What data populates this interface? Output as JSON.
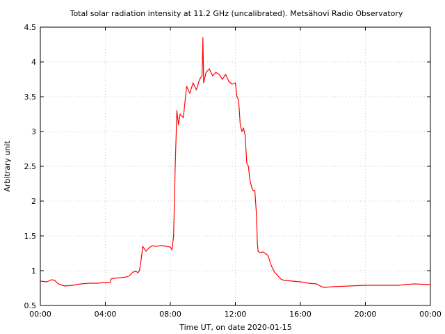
{
  "chart_data": {
    "type": "line",
    "title": "Total solar radiation intensity at 11.2 GHz (uncalibrated). Metsähovi Radio Observatory",
    "xlabel": "Time UT, on date 2020-01-15",
    "ylabel": "Arbitrary unit",
    "xlim": [
      0,
      24
    ],
    "ylim": [
      0.5,
      4.5
    ],
    "xticks": [
      0,
      4,
      8,
      12,
      16,
      20,
      24
    ],
    "xtick_labels": [
      "00:00",
      "04:00",
      "08:00",
      "12:00",
      "16:00",
      "20:00",
      "00:00"
    ],
    "yticks": [
      0.5,
      1,
      1.5,
      2,
      2.5,
      3,
      3.5,
      4,
      4.5
    ],
    "ytick_labels": [
      "0.5",
      "1",
      "1.5",
      "2",
      "2.5",
      "3",
      "3.5",
      "4",
      "4.5"
    ],
    "grid": true,
    "line_color": "#ff0000",
    "series": [
      {
        "x": [
          0.0,
          0.4,
          0.7,
          0.9,
          1.0,
          1.2,
          1.5,
          2.0,
          2.5,
          3.0,
          3.5,
          4.0,
          4.3,
          4.35,
          4.5,
          5.0,
          5.3,
          5.5,
          5.7,
          5.9,
          6.0,
          6.1,
          6.2,
          6.3,
          6.5,
          6.7,
          6.9,
          7.0,
          7.5,
          8.0,
          8.1,
          8.2,
          8.3,
          8.4,
          8.5,
          8.6,
          8.8,
          9.0,
          9.2,
          9.4,
          9.6,
          9.8,
          9.95,
          10.0,
          10.05,
          10.2,
          10.4,
          10.6,
          10.8,
          11.0,
          11.2,
          11.4,
          11.6,
          11.8,
          12.0,
          12.1,
          12.2,
          12.3,
          12.4,
          12.5,
          12.6,
          12.7,
          12.8,
          12.9,
          13.0,
          13.1,
          13.2,
          13.3,
          13.35,
          13.4,
          13.5,
          13.7,
          14.0,
          14.2,
          14.4,
          14.6,
          14.8,
          15.0,
          15.5,
          16.0,
          16.5,
          17.0,
          17.3,
          17.5,
          18.0,
          19.0,
          20.0,
          21.0,
          22.0,
          22.5,
          23.0,
          24.0
        ],
        "y": [
          0.85,
          0.84,
          0.87,
          0.86,
          0.83,
          0.8,
          0.78,
          0.79,
          0.81,
          0.82,
          0.82,
          0.83,
          0.83,
          0.88,
          0.89,
          0.9,
          0.91,
          0.93,
          0.98,
          0.99,
          0.97,
          1.0,
          1.15,
          1.35,
          1.28,
          1.33,
          1.36,
          1.35,
          1.36,
          1.34,
          1.3,
          1.5,
          2.5,
          3.3,
          3.1,
          3.25,
          3.2,
          3.65,
          3.55,
          3.7,
          3.6,
          3.75,
          3.8,
          4.35,
          3.7,
          3.85,
          3.9,
          3.8,
          3.85,
          3.82,
          3.75,
          3.82,
          3.72,
          3.68,
          3.7,
          3.5,
          3.45,
          3.1,
          3.0,
          3.05,
          2.95,
          2.55,
          2.5,
          2.3,
          2.2,
          2.15,
          2.15,
          1.8,
          1.4,
          1.28,
          1.26,
          1.27,
          1.22,
          1.08,
          0.98,
          0.93,
          0.88,
          0.86,
          0.85,
          0.84,
          0.82,
          0.81,
          0.77,
          0.76,
          0.77,
          0.78,
          0.79,
          0.79,
          0.79,
          0.8,
          0.81,
          0.8
        ]
      }
    ]
  }
}
